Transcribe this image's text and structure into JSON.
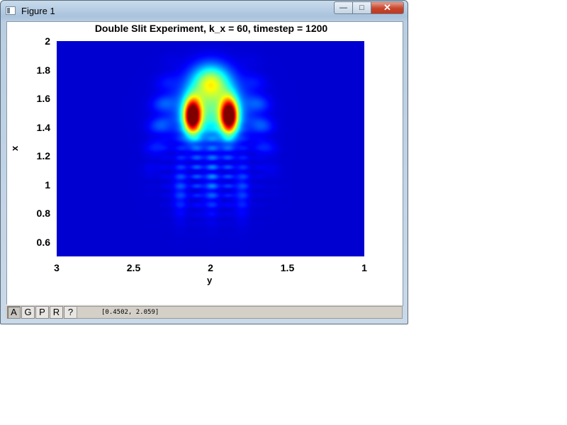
{
  "window": {
    "title": "Figure 1",
    "controls": {
      "minimize": "—",
      "maximize": "□",
      "close": "✕"
    }
  },
  "chart_data": {
    "type": "heatmap",
    "title": "Double Slit Experiment, k_x = 60, timestep = 1200",
    "xlabel": "y",
    "ylabel": "x",
    "xlim": [
      3,
      1
    ],
    "ylim": [
      0.5,
      2
    ],
    "xticks": [
      "3",
      "2.5",
      "2",
      "1.5",
      "1"
    ],
    "xtick_values": [
      3,
      2.5,
      2,
      1.5,
      1
    ],
    "yticks": [
      "2",
      "1.8",
      "1.6",
      "1.4",
      "1.2",
      "1",
      "0.8",
      "0.6"
    ],
    "ytick_values": [
      2,
      1.8,
      1.6,
      1.4,
      1.2,
      1,
      0.8,
      0.6
    ],
    "colormap": "jet",
    "background_color": "#00008f",
    "features": [
      {
        "name": "left-lobe",
        "y": 2.12,
        "x": 1.48,
        "peak": 1.0
      },
      {
        "name": "right-lobe",
        "y": 1.88,
        "x": 1.48,
        "peak": 1.0
      },
      {
        "name": "central-cap",
        "y": 2.0,
        "x": 1.72,
        "peak": 0.45
      },
      {
        "name": "interference-fringes",
        "y": 2.0,
        "x_range": [
          0.8,
          1.35
        ]
      }
    ]
  },
  "toolbar": {
    "buttons": [
      {
        "label": "A",
        "pressed": true
      },
      {
        "label": "G",
        "pressed": false
      },
      {
        "label": "P",
        "pressed": false
      },
      {
        "label": "R",
        "pressed": false
      },
      {
        "label": "?",
        "pressed": false
      }
    ],
    "coordinates": "[0.4502, 2.059]"
  }
}
